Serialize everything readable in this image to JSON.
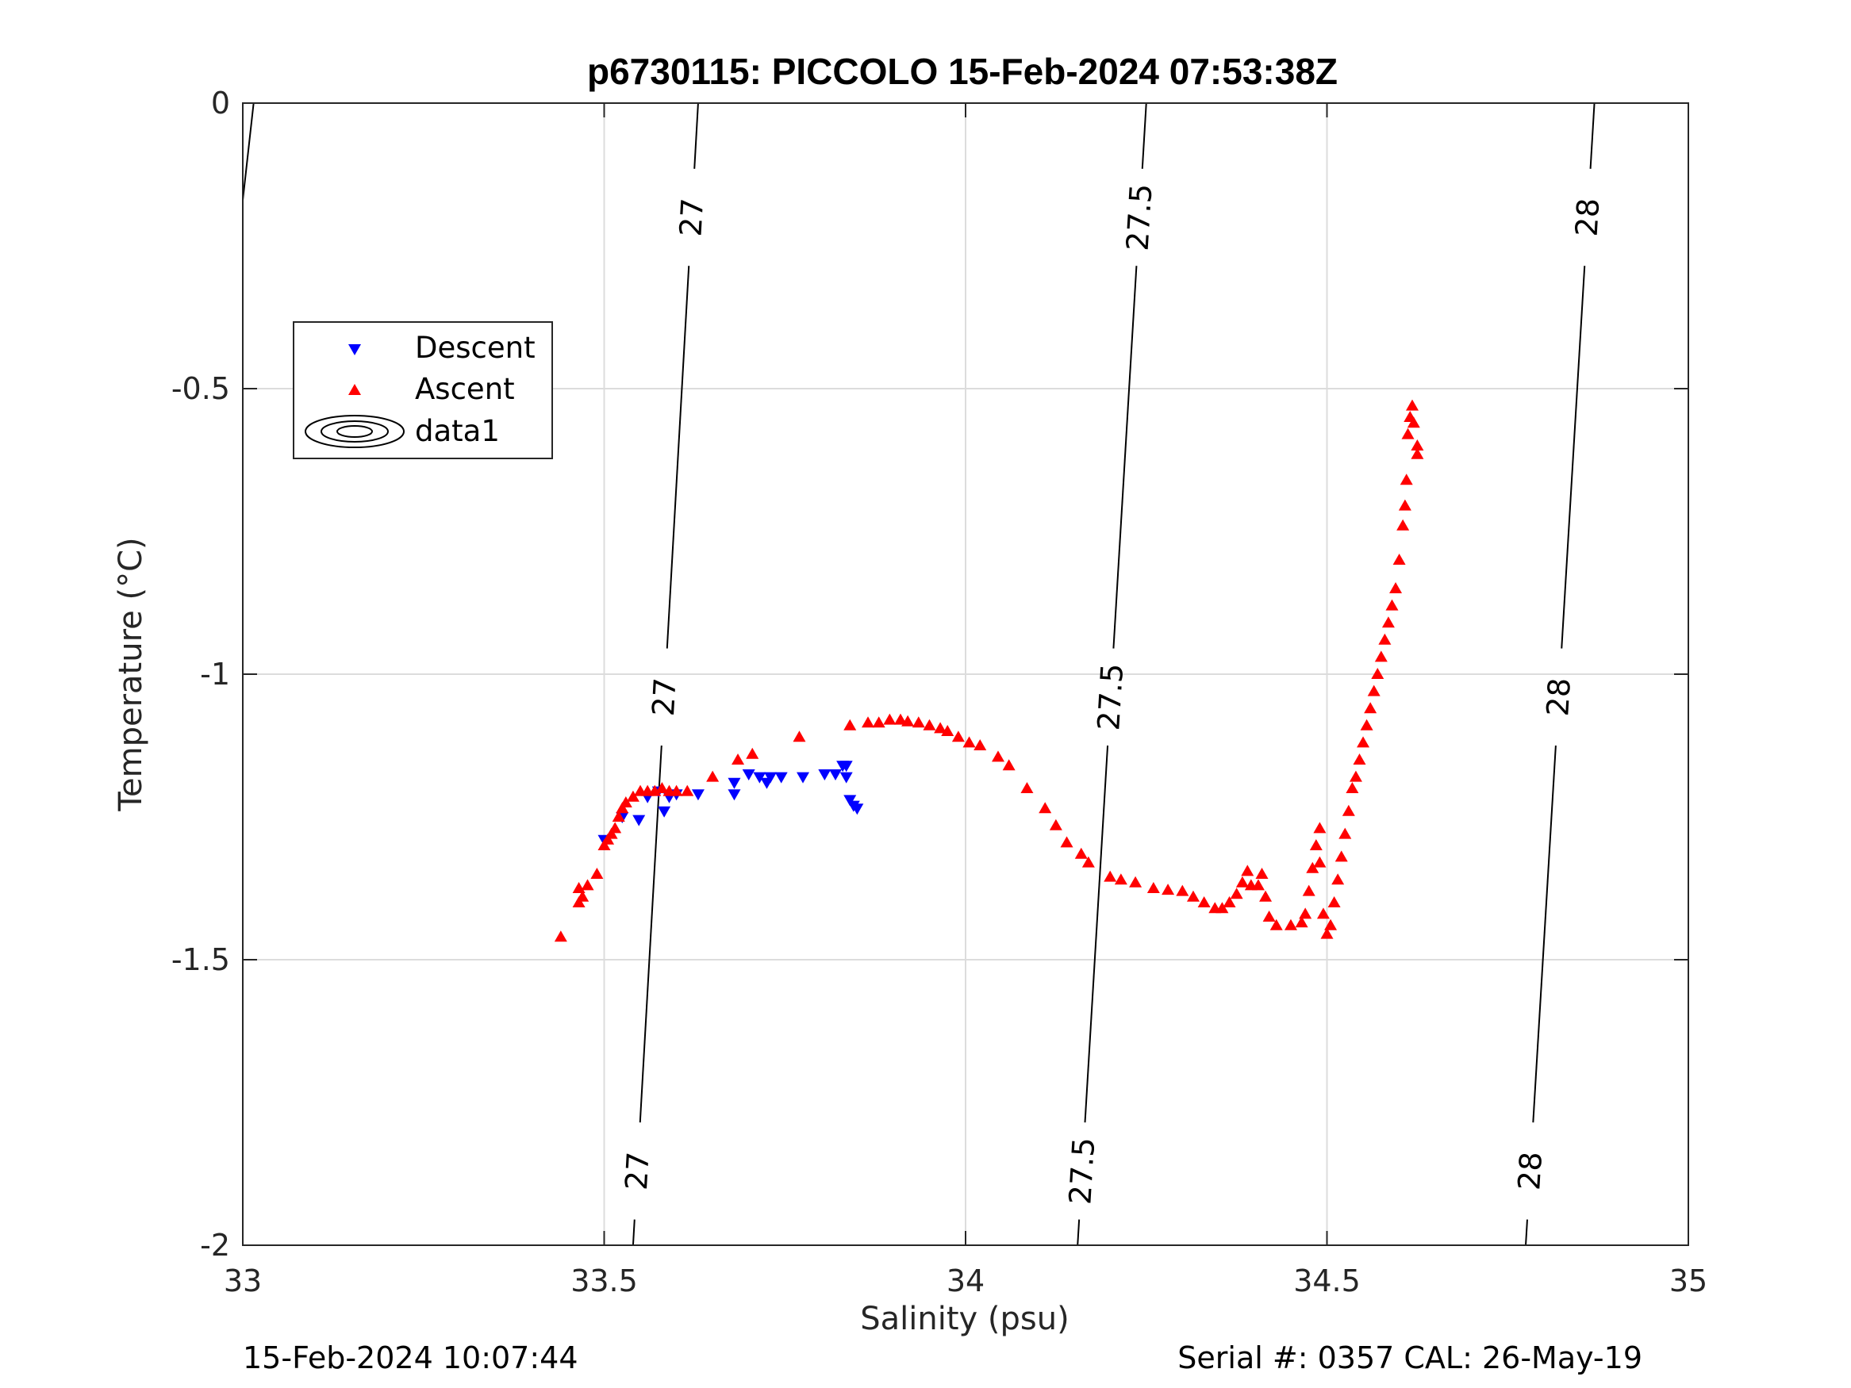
{
  "chart_data": {
    "type": "scatter",
    "title": "p6730115: PICCOLO 15-Feb-2024 07:53:38Z",
    "xlabel": "Salinity (psu)",
    "ylabel": "Temperature (°C)",
    "xlim": [
      33,
      35
    ],
    "ylim": [
      -2,
      0
    ],
    "x_ticks": [
      "33",
      "33.5",
      "34",
      "34.5",
      "35"
    ],
    "y_ticks": [
      "0",
      "-0.5",
      "-1",
      "-1.5",
      "-2"
    ],
    "grid": true,
    "legend_position": "upper-left",
    "footer_left": "15-Feb-2024 10:07:44",
    "footer_right": "Serial #: 0357  CAL: 26-May-19",
    "series": [
      {
        "name": "Descent",
        "marker": "triangle-down",
        "color": "#0000ff",
        "points": [
          [
            33.5,
            -1.29
          ],
          [
            33.525,
            -1.25
          ],
          [
            33.548,
            -1.255
          ],
          [
            33.56,
            -1.215
          ],
          [
            33.575,
            -1.205
          ],
          [
            33.583,
            -1.24
          ],
          [
            33.59,
            -1.215
          ],
          [
            33.6,
            -1.21
          ],
          [
            33.63,
            -1.21
          ],
          [
            33.68,
            -1.19
          ],
          [
            33.68,
            -1.21
          ],
          [
            33.7,
            -1.175
          ],
          [
            33.715,
            -1.18
          ],
          [
            33.725,
            -1.19
          ],
          [
            33.73,
            -1.18
          ],
          [
            33.745,
            -1.18
          ],
          [
            33.775,
            -1.18
          ],
          [
            33.805,
            -1.175
          ],
          [
            33.82,
            -1.175
          ],
          [
            33.83,
            -1.16
          ],
          [
            33.835,
            -1.16
          ],
          [
            33.835,
            -1.18
          ],
          [
            33.84,
            -1.22
          ],
          [
            33.845,
            -1.23
          ],
          [
            33.85,
            -1.235
          ]
        ]
      },
      {
        "name": "Ascent",
        "marker": "triangle-up",
        "color": "#ff0000",
        "points": [
          [
            33.44,
            -1.46
          ],
          [
            33.465,
            -1.4
          ],
          [
            33.465,
            -1.375
          ],
          [
            33.47,
            -1.39
          ],
          [
            33.477,
            -1.37
          ],
          [
            33.49,
            -1.35
          ],
          [
            33.5,
            -1.3
          ],
          [
            33.505,
            -1.29
          ],
          [
            33.51,
            -1.28
          ],
          [
            33.515,
            -1.27
          ],
          [
            33.52,
            -1.25
          ],
          [
            33.525,
            -1.235
          ],
          [
            33.53,
            -1.225
          ],
          [
            33.54,
            -1.215
          ],
          [
            33.55,
            -1.205
          ],
          [
            33.56,
            -1.205
          ],
          [
            33.57,
            -1.205
          ],
          [
            33.58,
            -1.2
          ],
          [
            33.59,
            -1.205
          ],
          [
            33.6,
            -1.205
          ],
          [
            33.615,
            -1.205
          ],
          [
            33.65,
            -1.18
          ],
          [
            33.685,
            -1.15
          ],
          [
            33.705,
            -1.14
          ],
          [
            33.77,
            -1.11
          ],
          [
            33.84,
            -1.09
          ],
          [
            33.865,
            -1.085
          ],
          [
            33.88,
            -1.085
          ],
          [
            33.895,
            -1.08
          ],
          [
            33.91,
            -1.08
          ],
          [
            33.92,
            -1.083
          ],
          [
            33.935,
            -1.085
          ],
          [
            33.95,
            -1.09
          ],
          [
            33.965,
            -1.095
          ],
          [
            33.975,
            -1.1
          ],
          [
            33.99,
            -1.11
          ],
          [
            34.005,
            -1.12
          ],
          [
            34.02,
            -1.125
          ],
          [
            34.045,
            -1.145
          ],
          [
            34.06,
            -1.16
          ],
          [
            34.085,
            -1.2
          ],
          [
            34.11,
            -1.235
          ],
          [
            34.125,
            -1.265
          ],
          [
            34.14,
            -1.295
          ],
          [
            34.16,
            -1.315
          ],
          [
            34.17,
            -1.33
          ],
          [
            34.2,
            -1.355
          ],
          [
            34.215,
            -1.36
          ],
          [
            34.235,
            -1.365
          ],
          [
            34.26,
            -1.375
          ],
          [
            34.28,
            -1.378
          ],
          [
            34.3,
            -1.38
          ],
          [
            34.315,
            -1.39
          ],
          [
            34.33,
            -1.4
          ],
          [
            34.345,
            -1.41
          ],
          [
            34.355,
            -1.41
          ],
          [
            34.365,
            -1.4
          ],
          [
            34.375,
            -1.385
          ],
          [
            34.383,
            -1.365
          ],
          [
            34.39,
            -1.345
          ],
          [
            34.395,
            -1.37
          ],
          [
            34.405,
            -1.37
          ],
          [
            34.41,
            -1.35
          ],
          [
            34.415,
            -1.39
          ],
          [
            34.42,
            -1.425
          ],
          [
            34.43,
            -1.44
          ],
          [
            34.45,
            -1.44
          ],
          [
            34.465,
            -1.435
          ],
          [
            34.47,
            -1.42
          ],
          [
            34.475,
            -1.38
          ],
          [
            34.48,
            -1.34
          ],
          [
            34.485,
            -1.3
          ],
          [
            34.49,
            -1.27
          ],
          [
            34.49,
            -1.33
          ],
          [
            34.495,
            -1.42
          ],
          [
            34.5,
            -1.455
          ],
          [
            34.505,
            -1.44
          ],
          [
            34.51,
            -1.4
          ],
          [
            34.515,
            -1.36
          ],
          [
            34.52,
            -1.32
          ],
          [
            34.525,
            -1.28
          ],
          [
            34.53,
            -1.24
          ],
          [
            34.535,
            -1.2
          ],
          [
            34.54,
            -1.18
          ],
          [
            34.545,
            -1.15
          ],
          [
            34.55,
            -1.12
          ],
          [
            34.555,
            -1.09
          ],
          [
            34.56,
            -1.06
          ],
          [
            34.565,
            -1.03
          ],
          [
            34.57,
            -1.0
          ],
          [
            34.575,
            -0.97
          ],
          [
            34.58,
            -0.94
          ],
          [
            34.585,
            -0.91
          ],
          [
            34.59,
            -0.88
          ],
          [
            34.595,
            -0.85
          ],
          [
            34.6,
            -0.8
          ],
          [
            34.605,
            -0.74
          ],
          [
            34.608,
            -0.705
          ],
          [
            34.61,
            -0.66
          ],
          [
            34.612,
            -0.58
          ],
          [
            34.615,
            -0.55
          ],
          [
            34.618,
            -0.53
          ],
          [
            34.62,
            -0.56
          ],
          [
            34.625,
            -0.6
          ],
          [
            34.625,
            -0.615
          ]
        ]
      }
    ],
    "contour_label": "data1",
    "isopycnals": [
      {
        "value": "27",
        "s_at_t0": 33.63,
        "s_at_tm2": 33.54
      },
      {
        "value": "27.5",
        "s_at_t0": 34.25,
        "s_at_tm2": 34.155
      },
      {
        "value": "28",
        "s_at_t0": 34.87,
        "s_at_tm2": 34.775
      }
    ],
    "partial_contour": {
      "s_top": 33.015,
      "s_bottom": 33.0,
      "t_bottom": -0.17
    }
  }
}
